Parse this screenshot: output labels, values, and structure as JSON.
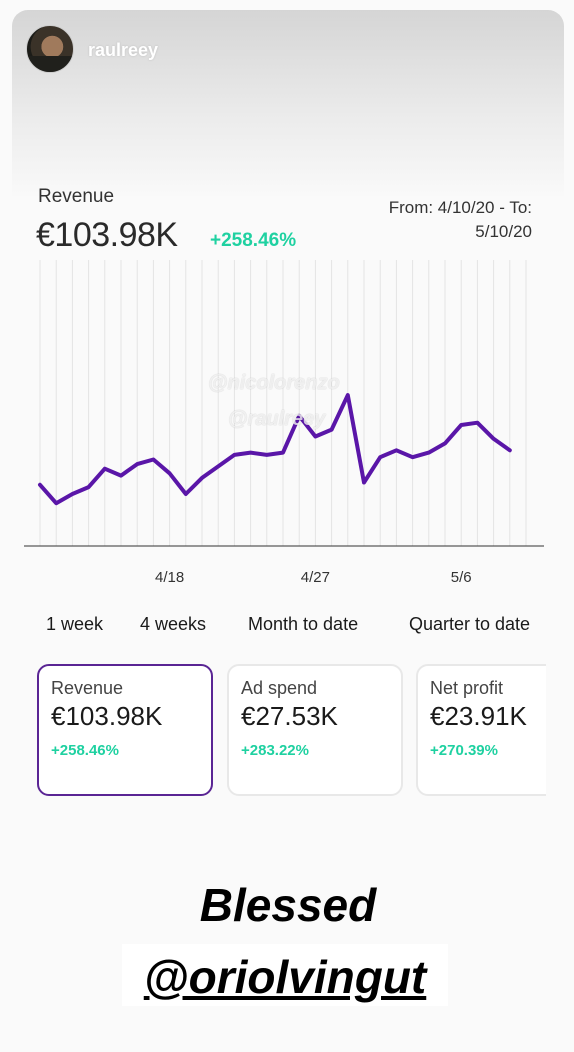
{
  "story": {
    "username": "raulreey"
  },
  "header": {
    "metric_label": "Revenue",
    "metric_value": "€103.98K",
    "metric_change": "+258.46%",
    "date_range_line1": "From: 4/10/20 - To:",
    "date_range_line2": "5/10/20"
  },
  "watermarks": [
    "@nicolorenzo",
    "@raulreey"
  ],
  "chart_data": {
    "type": "line",
    "title": "",
    "x_tick_labels": [
      "4/18",
      "4/27",
      "5/6"
    ],
    "x": [
      "4/10",
      "4/11",
      "4/12",
      "4/13",
      "4/14",
      "4/15",
      "4/16",
      "4/17",
      "4/18",
      "4/19",
      "4/20",
      "4/21",
      "4/22",
      "4/23",
      "4/24",
      "4/25",
      "4/26",
      "4/27",
      "4/28",
      "4/29",
      "4/30",
      "5/1",
      "5/2",
      "5/3",
      "5/4",
      "5/5",
      "5/6",
      "5/7",
      "5/8",
      "5/9",
      "5/10"
    ],
    "series": [
      {
        "color": "#5a16a8",
        "values": [
          24,
          16,
          20,
          23,
          31,
          28,
          33,
          35,
          29,
          20,
          27,
          32,
          37,
          38,
          37,
          38,
          54,
          45,
          48,
          63,
          25,
          36,
          39,
          36,
          38,
          42,
          50,
          51,
          44,
          39,
          null
        ]
      }
    ],
    "ylim": [
      0,
      100
    ],
    "grid": "vertical",
    "series_color": "#5a16a8"
  },
  "range_tabs": [
    "1 week",
    "4 weeks",
    "Month to date",
    "Quarter to date"
  ],
  "cards": [
    {
      "label": "Revenue",
      "value": "€103.98K",
      "change": "+258.46%",
      "active": true
    },
    {
      "label": "Ad spend",
      "value": "€27.53K",
      "change": "+283.22%",
      "active": false
    },
    {
      "label": "Net profit",
      "value": "€23.91K",
      "change": "+270.39%",
      "active": false
    }
  ],
  "caption": {
    "line1": "Blessed",
    "line2": "@oriolvingut"
  },
  "colors": {
    "accent": "#5a2594",
    "positive": "#1fd1a1",
    "line": "#5a16a8"
  }
}
